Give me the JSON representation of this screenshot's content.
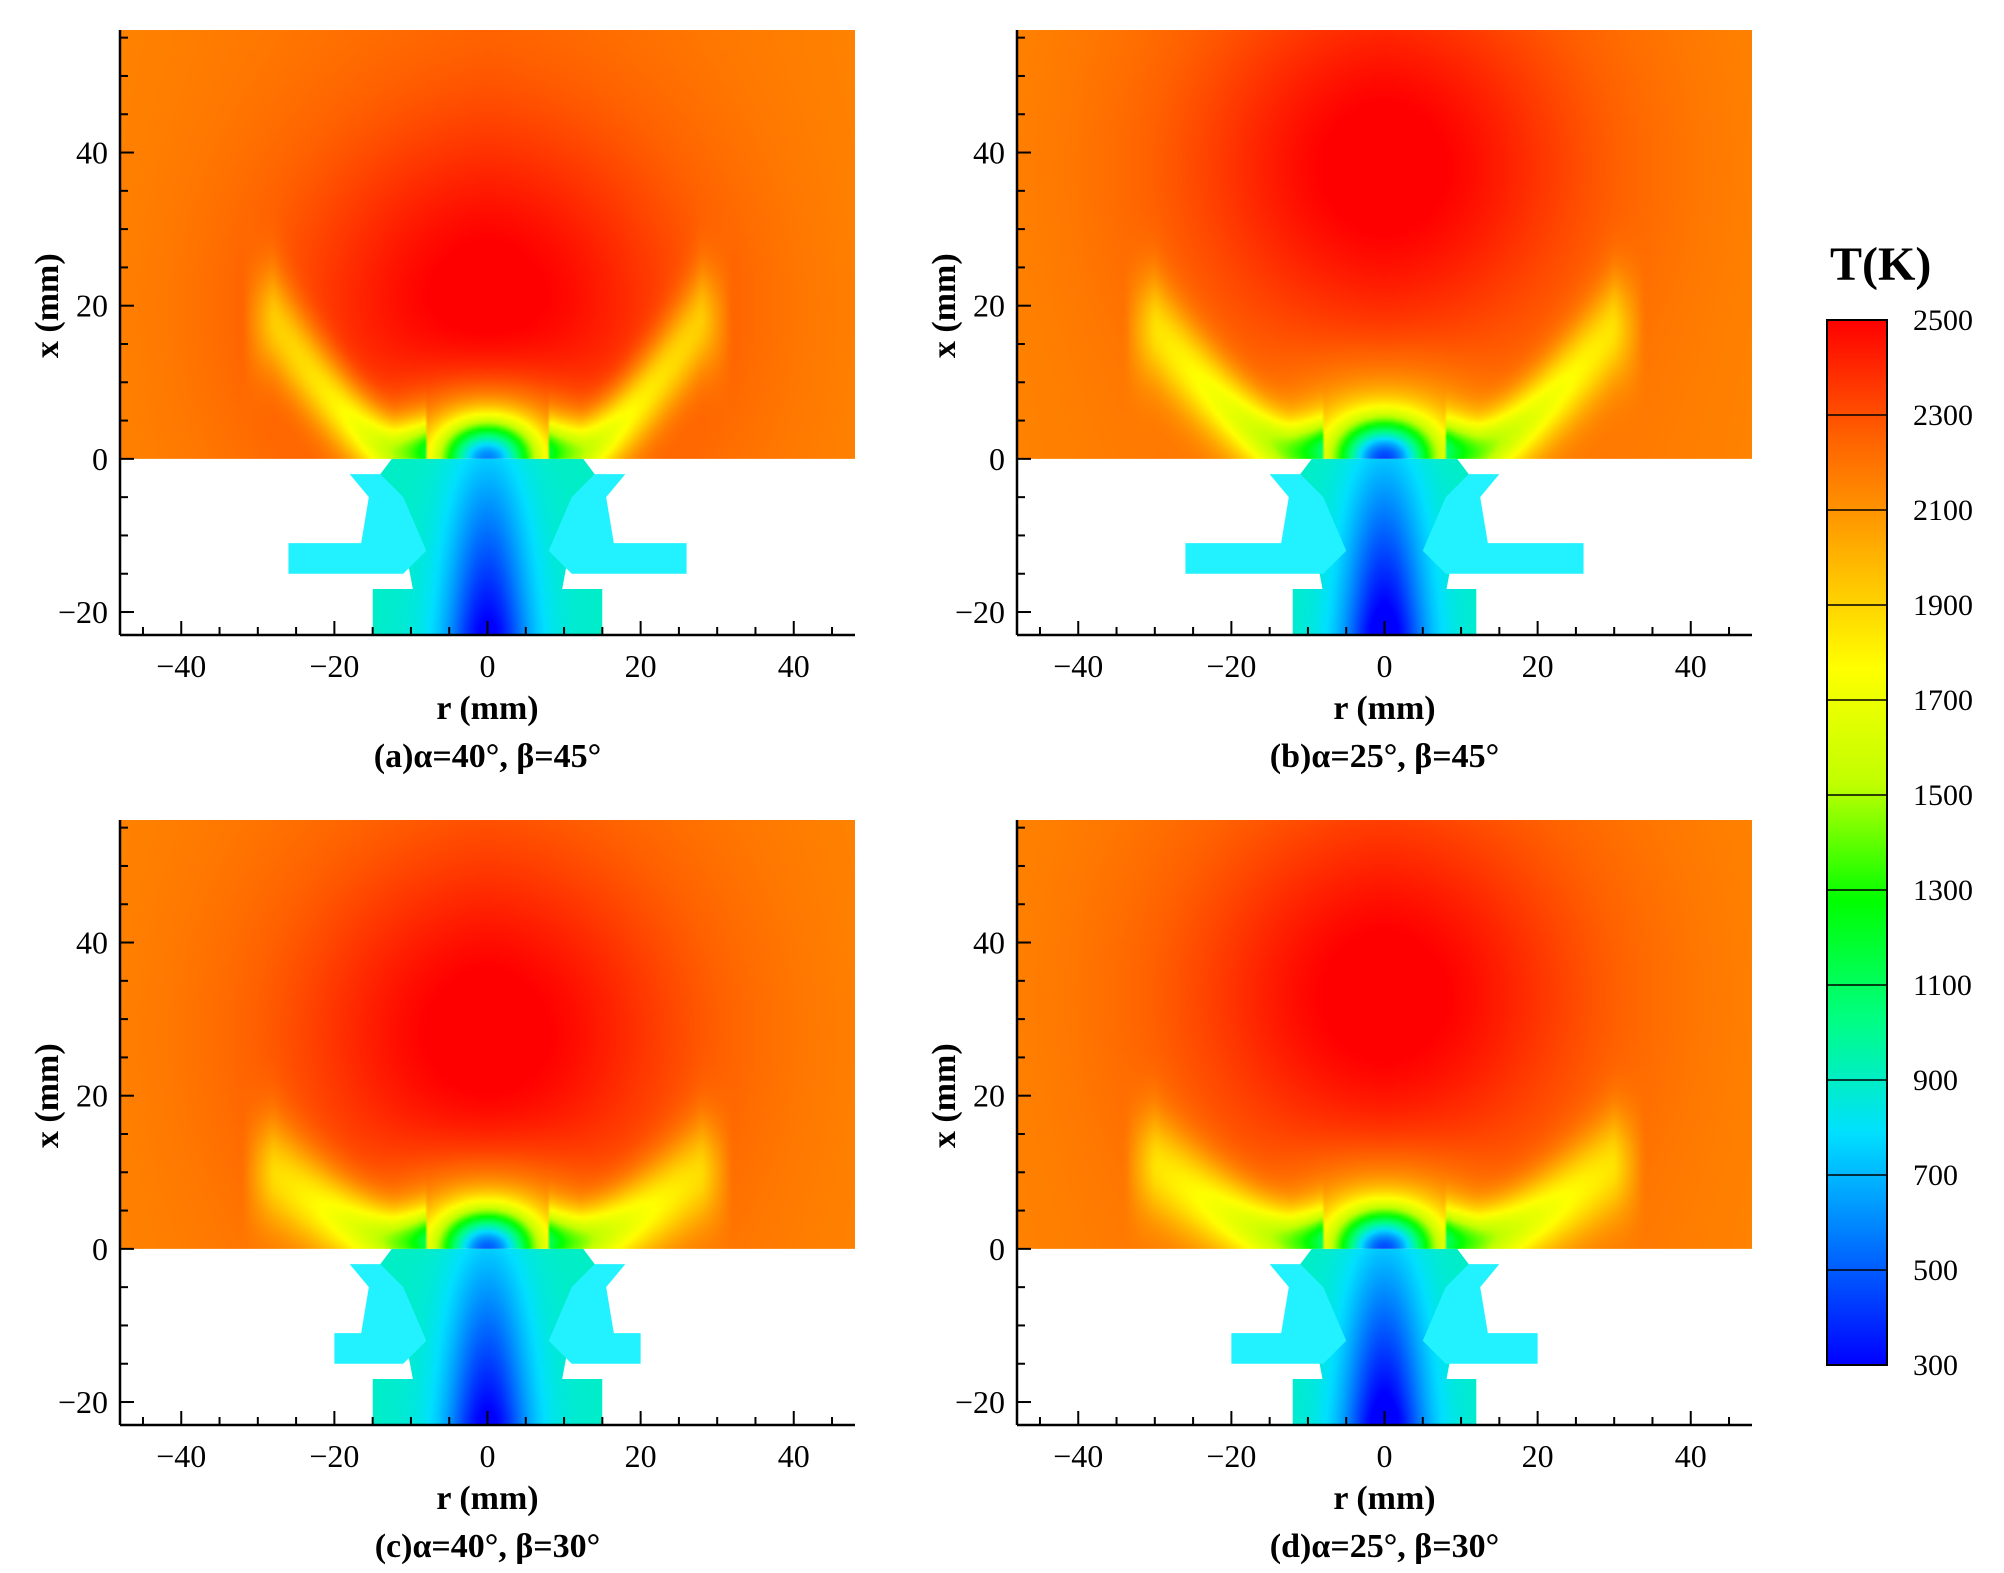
{
  "chart_data": [
    {
      "type": "heatmap",
      "caption": "(a)α=40°, β=45°",
      "xlabel": "r (mm)",
      "ylabel": "x (mm)",
      "xlim": [
        -48,
        48
      ],
      "ylim": [
        -23,
        56
      ],
      "xticks": [
        -40,
        -20,
        0,
        20,
        40
      ],
      "yticks": [
        -20,
        0,
        20,
        40
      ],
      "field": {
        "hot_core_center_x": 20,
        "flame_wing_tip_r": 28,
        "flame_wing_tip_x": 18,
        "nozzle_cold_core_T": 400
      },
      "geometry": {
        "alpha_deg": 40,
        "beta_deg": 45,
        "outer_port_r": [
          20,
          26
        ],
        "center_pipe_half_width_mm": 15
      }
    },
    {
      "type": "heatmap",
      "caption": "(b)α=25°, β=45°",
      "xlabel": "r (mm)",
      "ylabel": "x (mm)",
      "xlim": [
        -48,
        48
      ],
      "ylim": [
        -23,
        56
      ],
      "xticks": [
        -40,
        -20,
        0,
        20,
        40
      ],
      "yticks": [
        -20,
        0,
        20,
        40
      ],
      "field": {
        "hot_core_center_x": 38,
        "flame_wing_tip_r": 30,
        "flame_wing_tip_x": 17,
        "nozzle_cold_core_T": 350
      },
      "geometry": {
        "alpha_deg": 25,
        "beta_deg": 45,
        "outer_port_r": [
          18,
          26
        ],
        "center_pipe_half_width_mm": 12
      }
    },
    {
      "type": "heatmap",
      "caption": "(c)α=40°, β=30°",
      "xlabel": "r (mm)",
      "ylabel": "x (mm)",
      "xlim": [
        -48,
        48
      ],
      "ylim": [
        -23,
        56
      ],
      "xticks": [
        -40,
        -20,
        0,
        20,
        40
      ],
      "yticks": [
        -20,
        0,
        20,
        40
      ],
      "field": {
        "hot_core_center_x": 28,
        "flame_wing_tip_r": 28,
        "flame_wing_tip_x": 10,
        "nozzle_cold_core_T": 400
      },
      "geometry": {
        "alpha_deg": 40,
        "beta_deg": 30,
        "outer_port_r": [
          15,
          20
        ],
        "center_pipe_half_width_mm": 15
      }
    },
    {
      "type": "heatmap",
      "caption": "(d)α=25°, β=30°",
      "xlabel": "r (mm)",
      "ylabel": "x (mm)",
      "xlim": [
        -48,
        48
      ],
      "ylim": [
        -23,
        56
      ],
      "xticks": [
        -40,
        -20,
        0,
        20,
        40
      ],
      "yticks": [
        -20,
        0,
        20,
        40
      ],
      "field": {
        "hot_core_center_x": 33,
        "flame_wing_tip_r": 30,
        "flame_wing_tip_x": 11,
        "nozzle_cold_core_T": 350
      },
      "geometry": {
        "alpha_deg": 25,
        "beta_deg": 30,
        "outer_port_r": [
          13,
          20
        ],
        "center_pipe_half_width_mm": 12
      }
    }
  ],
  "colorbar": {
    "title": "T(K)",
    "min": 300,
    "max": 2500,
    "ticks": [
      2500,
      2300,
      2100,
      1900,
      1700,
      1500,
      1300,
      1100,
      900,
      700,
      500,
      300
    ],
    "colors": [
      "#0000ff",
      "#0070ff",
      "#00e0ff",
      "#00ff80",
      "#00ff00",
      "#c0ff00",
      "#ffff00",
      "#ffb000",
      "#ff6000",
      "#ff0000"
    ]
  }
}
